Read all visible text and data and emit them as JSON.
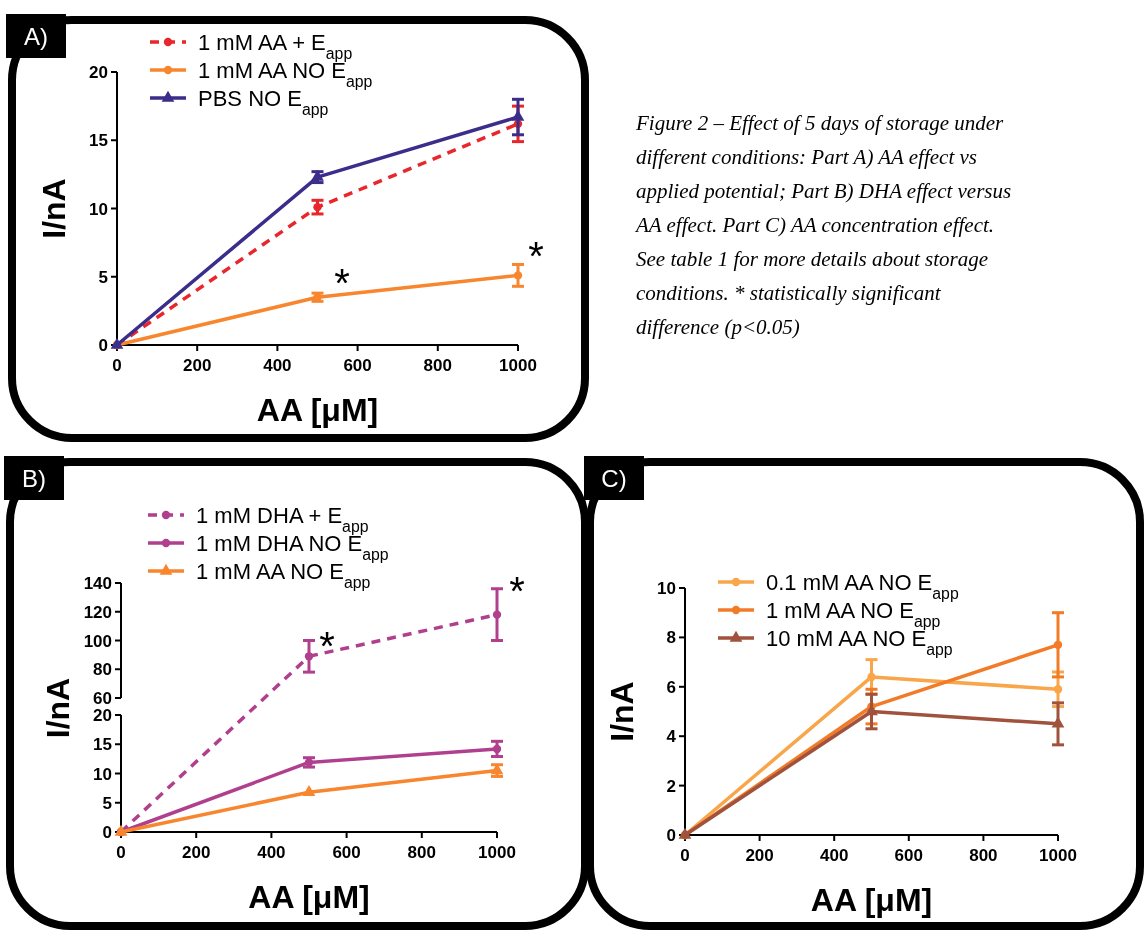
{
  "chart_data": [
    {
      "type": "line",
      "title": "A)",
      "xlabel": "AA [μM]",
      "ylabel": "I/nA",
      "x": [
        0,
        500,
        1000
      ],
      "xlim": [
        0,
        1000
      ],
      "xticks": [
        0,
        200,
        400,
        600,
        800,
        1000
      ],
      "ylim": [
        0,
        20
      ],
      "yticks": [
        0,
        5,
        10,
        15,
        20
      ],
      "legend": "top left",
      "series": [
        {
          "name": "1 mM AA + E$_{app}$",
          "color": "#e8262b",
          "values": [
            0,
            10.1,
            16.2
          ],
          "errors": [
            null,
            0.5,
            1.3
          ],
          "marker": "circle",
          "line_style": "dashed"
        },
        {
          "name": "1 mM AA NO E$_{app}$",
          "color": "#f7862e",
          "values": [
            0,
            3.5,
            5.1
          ],
          "errors": [
            null,
            0.3,
            0.8
          ],
          "marker": "circle",
          "line_style": "solid"
        },
        {
          "name": "PBS NO E$_{app}$",
          "color": "#3b2d8a",
          "values": [
            0,
            12.3,
            16.7
          ],
          "errors": [
            null,
            0.4,
            1.3
          ],
          "marker": "triangle",
          "line_style": "solid"
        }
      ],
      "annotations": [
        "*",
        "*"
      ]
    },
    {
      "type": "other",
      "annotations": [
        "Figure 2 – Effect of 5 days of storage under different conditions: Part A) AA effect vs applied potential; Part B) DHA effect versus AA effect. Part C) AA concentration effect. See table 1 for more details about storage conditions. * statistically significant difference (p<0.05)"
      ]
    },
    {
      "type": "line",
      "title": "B)",
      "xlim": [
        0,
        1000
      ],
      "ylim": [
        60,
        140
      ],
      "yticks": [
        60,
        80,
        100,
        120,
        140
      ],
      "tick_labels": "y",
      "series": [
        {
          "color": "#b03f8e",
          "x": [
            500,
            1000
          ],
          "values": [
            89,
            118
          ],
          "errors": [
            11,
            18
          ],
          "marker": "circle",
          "line_style": "dashed"
        }
      ],
      "annotations": [
        "*",
        "*"
      ]
    },
    {
      "type": "line",
      "xlabel": "AA [μM]",
      "ylabel": "I/nA",
      "x": [
        0,
        500,
        1000
      ],
      "xlim": [
        0,
        1000
      ],
      "xticks": [
        0,
        200,
        400,
        600,
        800,
        1000
      ],
      "ylim": [
        0,
        20
      ],
      "yticks": [
        0,
        5,
        10,
        15,
        20
      ],
      "legend": "top left",
      "series": [
        {
          "name": "1 mM DHA + E$_{app}$",
          "color": "#b03f8e",
          "x": [
            0
          ],
          "values": [
            0
          ],
          "marker": "circle",
          "line_style": "dashed"
        },
        {
          "name": "1 mM DHA NO E$_{app}$",
          "color": "#b03f8e",
          "values": [
            0,
            11.9,
            14.2
          ],
          "errors": [
            null,
            0.8,
            1.3
          ],
          "marker": "circle",
          "line_style": "solid"
        },
        {
          "name": "1 mM AA NO E$_{app}$",
          "color": "#f7862e",
          "values": [
            0,
            6.8,
            10.5
          ],
          "errors": [
            null,
            null,
            1.0
          ],
          "marker": "triangle",
          "line_style": "solid"
        }
      ]
    },
    {
      "type": "line",
      "title": "C)",
      "xlabel": "AA [μM]",
      "ylabel": "I/nA",
      "x": [
        0,
        500,
        1000
      ],
      "xlim": [
        0,
        1000
      ],
      "xticks": [
        0,
        200,
        400,
        600,
        800,
        1000
      ],
      "ylim": [
        0,
        10
      ],
      "yticks": [
        0,
        2,
        4,
        6,
        8,
        10
      ],
      "legend": "top left",
      "series": [
        {
          "name": "0.1 mM AA NO E$_{app}$",
          "color": "#f9a64a",
          "values": [
            0,
            6.4,
            5.9
          ],
          "errors": [
            null,
            0.7,
            0.7
          ],
          "marker": "circle",
          "line_style": "solid"
        },
        {
          "name": "1 mM AA NO E$_{app}$",
          "color": "#f27b28",
          "values": [
            0,
            5.2,
            7.7
          ],
          "errors": [
            null,
            0.7,
            1.3
          ],
          "marker": "circle",
          "line_style": "solid"
        },
        {
          "name": "10 mM AA NO E$_{app}$",
          "color": "#a0523d",
          "values": [
            0,
            5.0,
            4.5
          ],
          "errors": [
            null,
            0.7,
            0.85
          ],
          "marker": "triangle",
          "line_style": "solid"
        }
      ]
    }
  ]
}
